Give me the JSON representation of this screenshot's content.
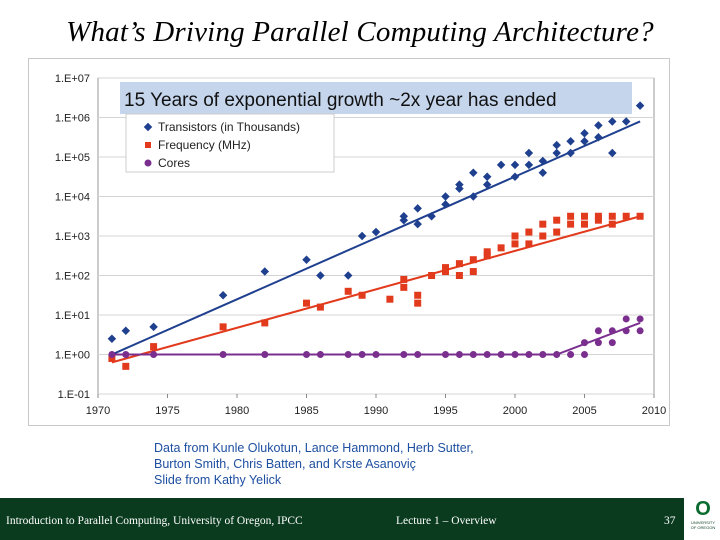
{
  "slide": {
    "title": "What’s Driving Parallel Computing Architecture?",
    "credits": [
      "Data from Kunle Olukotun, Lance Hammond, Herb Sutter,",
      "Burton Smith, Chris Batten, and Krste Asanoviç",
      "Slide from Kathy Yelick"
    ]
  },
  "footer": {
    "course": "Introduction to Parallel Computing, University of Oregon, IPCC",
    "lecture": "Lecture 1 – Overview",
    "page": "37",
    "logo_letter": "O",
    "logo_text": "UNIVERSITY OF OREGON"
  },
  "colors": {
    "transistors": "#1f3f8f",
    "frequency": "#e23a1c",
    "cores": "#7a2f8f",
    "banner": "#c5d5ec",
    "footer_bg": "#0a3b1f",
    "credit_text": "#1f4fa0"
  },
  "chart_data": {
    "type": "scatter",
    "yscale": "log",
    "annotation": "15 Years of exponential growth ~2x year has ended",
    "x_ticks": [
      "1970",
      "1975",
      "1980",
      "1985",
      "1990",
      "1995",
      "2000",
      "2005",
      "2010"
    ],
    "y_ticks": [
      "1.E-01",
      "1.E+00",
      "1.E+01",
      "1.E+02",
      "1.E+03",
      "1.E+04",
      "1.E+05",
      "1.E+06",
      "1.E+07"
    ],
    "xlim": [
      1970,
      2010
    ],
    "ylim_log10": [
      -1,
      7
    ],
    "legend": [
      "Transistors (in Thousands)",
      "Frequency (MHz)",
      "Cores"
    ],
    "legend_position": "top-left",
    "series": [
      {
        "name": "Transistors (in Thousands)",
        "marker": "diamond",
        "trend_log10": [
          [
            1971,
            0.0
          ],
          [
            2009,
            5.9
          ]
        ],
        "points": [
          [
            1971,
            0.4
          ],
          [
            1972,
            0.6
          ],
          [
            1974,
            0.7
          ],
          [
            1979,
            1.5
          ],
          [
            1982,
            2.1
          ],
          [
            1985,
            2.4
          ],
          [
            1986,
            2.0
          ],
          [
            1988,
            2.0
          ],
          [
            1989,
            3.0
          ],
          [
            1990,
            3.1
          ],
          [
            1992,
            3.4
          ],
          [
            1992,
            3.5
          ],
          [
            1993,
            3.3
          ],
          [
            1993,
            3.7
          ],
          [
            1994,
            3.5
          ],
          [
            1995,
            4.0
          ],
          [
            1995,
            3.8
          ],
          [
            1996,
            4.2
          ],
          [
            1996,
            4.3
          ],
          [
            1997,
            4.0
          ],
          [
            1997,
            4.6
          ],
          [
            1998,
            4.3
          ],
          [
            1998,
            4.5
          ],
          [
            1999,
            4.8
          ],
          [
            2000,
            4.5
          ],
          [
            2000,
            4.8
          ],
          [
            2001,
            5.1
          ],
          [
            2001,
            4.8
          ],
          [
            2002,
            4.6
          ],
          [
            2002,
            4.9
          ],
          [
            2003,
            5.3
          ],
          [
            2003,
            5.1
          ],
          [
            2004,
            5.4
          ],
          [
            2004,
            5.1
          ],
          [
            2005,
            5.6
          ],
          [
            2005,
            5.4
          ],
          [
            2006,
            5.8
          ],
          [
            2006,
            5.5
          ],
          [
            2007,
            5.9
          ],
          [
            2007,
            5.1
          ],
          [
            2008,
            5.9
          ],
          [
            2009,
            6.3
          ]
        ]
      },
      {
        "name": "Frequency (MHz)",
        "marker": "square",
        "trend_log10": [
          [
            1971,
            -0.2
          ],
          [
            2009,
            3.5
          ]
        ],
        "points": [
          [
            1971,
            -0.1
          ],
          [
            1972,
            -0.3
          ],
          [
            1974,
            0.2
          ],
          [
            1979,
            0.7
          ],
          [
            1982,
            0.8
          ],
          [
            1985,
            1.3
          ],
          [
            1986,
            1.2
          ],
          [
            1988,
            1.6
          ],
          [
            1989,
            1.5
          ],
          [
            1991,
            1.4
          ],
          [
            1992,
            1.7
          ],
          [
            1992,
            1.9
          ],
          [
            1993,
            1.3
          ],
          [
            1993,
            1.5
          ],
          [
            1994,
            2.0
          ],
          [
            1995,
            2.1
          ],
          [
            1995,
            2.2
          ],
          [
            1996,
            2.3
          ],
          [
            1996,
            2.0
          ],
          [
            1997,
            2.4
          ],
          [
            1997,
            2.1
          ],
          [
            1998,
            2.5
          ],
          [
            1998,
            2.6
          ],
          [
            1999,
            2.7
          ],
          [
            2000,
            2.8
          ],
          [
            2000,
            3.0
          ],
          [
            2001,
            3.1
          ],
          [
            2001,
            2.8
          ],
          [
            2002,
            3.3
          ],
          [
            2002,
            3.0
          ],
          [
            2003,
            3.4
          ],
          [
            2003,
            3.1
          ],
          [
            2004,
            3.5
          ],
          [
            2004,
            3.3
          ],
          [
            2005,
            3.5
          ],
          [
            2005,
            3.3
          ],
          [
            2006,
            3.5
          ],
          [
            2006,
            3.4
          ],
          [
            2007,
            3.5
          ],
          [
            2007,
            3.3
          ],
          [
            2008,
            3.5
          ],
          [
            2009,
            3.5
          ]
        ]
      },
      {
        "name": "Cores",
        "marker": "circle",
        "trend_log10": [
          [
            1971,
            0.0
          ],
          [
            2003,
            0.0
          ],
          [
            2009,
            0.8
          ]
        ],
        "points": [
          [
            1971,
            0.0
          ],
          [
            1972,
            0.0
          ],
          [
            1974,
            0.0
          ],
          [
            1979,
            0.0
          ],
          [
            1982,
            0.0
          ],
          [
            1985,
            0.0
          ],
          [
            1986,
            0.0
          ],
          [
            1988,
            0.0
          ],
          [
            1989,
            0.0
          ],
          [
            1990,
            0.0
          ],
          [
            1992,
            0.0
          ],
          [
            1993,
            0.0
          ],
          [
            1995,
            0.0
          ],
          [
            1996,
            0.0
          ],
          [
            1997,
            0.0
          ],
          [
            1998,
            0.0
          ],
          [
            1999,
            0.0
          ],
          [
            2000,
            0.0
          ],
          [
            2001,
            0.0
          ],
          [
            2002,
            0.0
          ],
          [
            2003,
            0.0
          ],
          [
            2004,
            0.0
          ],
          [
            2005,
            0.3
          ],
          [
            2005,
            0.0
          ],
          [
            2006,
            0.6
          ],
          [
            2006,
            0.3
          ],
          [
            2007,
            0.6
          ],
          [
            2007,
            0.3
          ],
          [
            2008,
            0.9
          ],
          [
            2008,
            0.6
          ],
          [
            2009,
            0.9
          ],
          [
            2009,
            0.6
          ]
        ]
      }
    ]
  }
}
